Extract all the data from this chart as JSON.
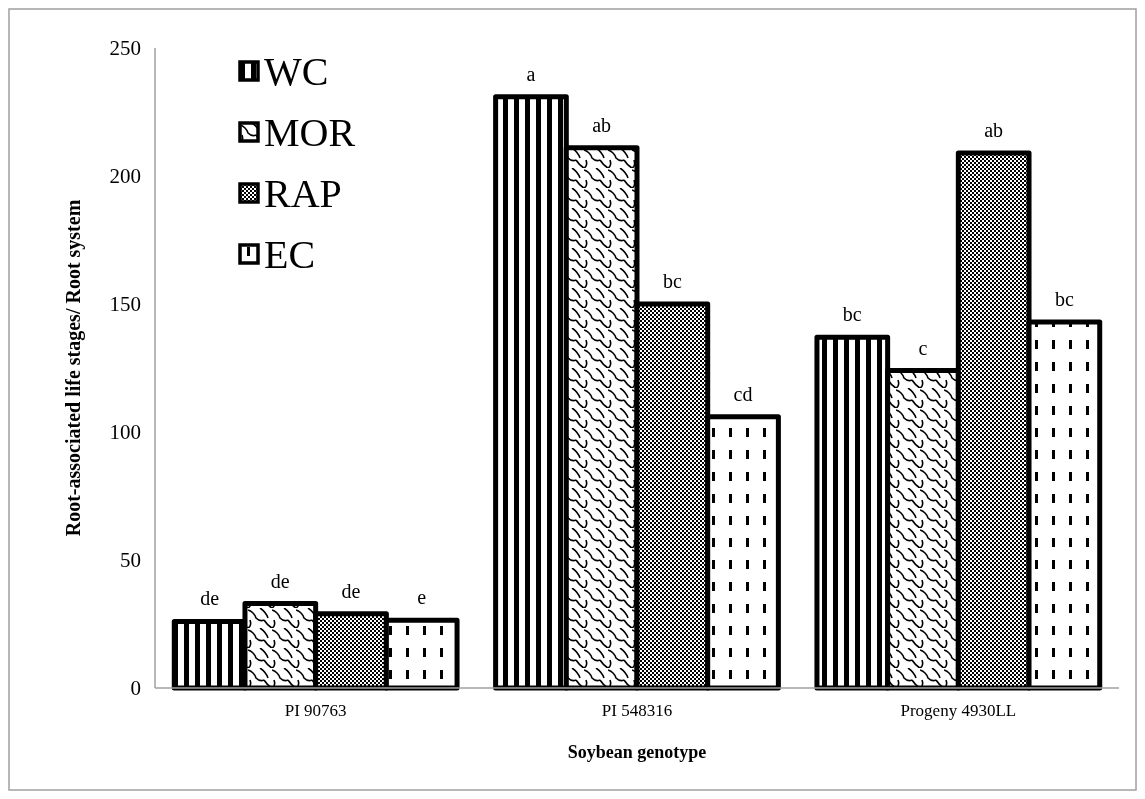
{
  "chart_data": {
    "type": "bar",
    "xlabel": "Soybean genotype",
    "ylabel": "Root-associated life stages/ Root system",
    "categories": [
      "PI 90763",
      "PI 548316",
      "Progeny 4930LL"
    ],
    "series": [
      {
        "name": "WC",
        "color": "#000000",
        "values": [
          26,
          231,
          137
        ],
        "value_labels": [
          "de",
          "a",
          "bc"
        ]
      },
      {
        "name": "MOR",
        "color": "#000000",
        "values": [
          33,
          211,
          124
        ],
        "value_labels": [
          "de",
          "ab",
          "c"
        ]
      },
      {
        "name": "RAP",
        "color": "#000000",
        "values": [
          29,
          150,
          209
        ],
        "value_labels": [
          "de",
          "bc",
          "ab"
        ]
      },
      {
        "name": "EC",
        "color": "#000000",
        "values": [
          26.5,
          106,
          143
        ],
        "value_labels": [
          "e",
          "cd",
          "bc"
        ]
      }
    ],
    "ylim": [
      0,
      250
    ],
    "yticks": [
      0,
      50,
      100,
      150,
      200,
      250
    ],
    "grid": false,
    "legend": "top left"
  }
}
